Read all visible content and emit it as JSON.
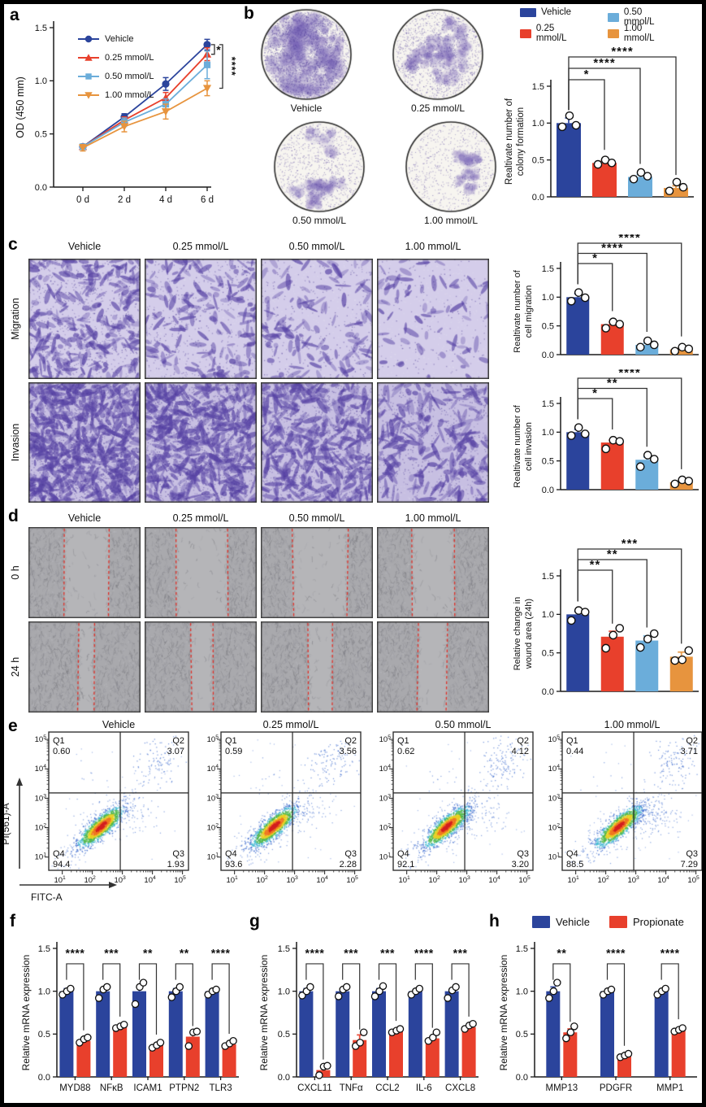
{
  "colors": {
    "vehicle_blue": "#2b449c",
    "red_025": "#e8402c",
    "lightblue_050": "#6badda",
    "orange_100": "#e7943e",
    "propionate_red": "#e8402c",
    "axis": "#1a1a1a",
    "wound_dash_red": "#e03028"
  },
  "groups": [
    {
      "label": "Vehicle",
      "color": "#2b449c"
    },
    {
      "label": "0.25 mmol/L",
      "color": "#e8402c"
    },
    {
      "label": "0.50 mmol/L",
      "color": "#6badda"
    },
    {
      "label": "1.00 mmol/L",
      "color": "#e7943e"
    }
  ],
  "panel_a": {
    "label": "a"
  },
  "panel_b": {
    "label": "b",
    "dish_labels": [
      "Vehicle",
      "0.25 mmol/L",
      "0.50 mmol/L",
      "1.00 mmol/L"
    ]
  },
  "panel_c": {
    "label": "c",
    "col_headers": [
      "Vehicle",
      "0.25 mmol/L",
      "0.50 mmol/L",
      "1.00 mmol/L"
    ],
    "row_labels": [
      "Migration",
      "Invasion"
    ]
  },
  "panel_d": {
    "label": "d",
    "col_headers": [
      "Vehicle",
      "0.25 mmol/L",
      "0.50 mmol/L",
      "1.00 mmol/L"
    ],
    "row_labels": [
      "0 h",
      "24 h"
    ]
  },
  "panel_e": {
    "label": "e"
  },
  "panel_f": {
    "label": "f"
  },
  "panel_g": {
    "label": "g"
  },
  "panel_h": {
    "label": "h"
  },
  "chart_data": [
    {
      "id": "a",
      "type": "line",
      "ylabel": "OD (450 mm)",
      "x_categories": [
        "0 d",
        "2 d",
        "4 d",
        "6 d"
      ],
      "ylim": [
        0,
        1.5
      ],
      "yticks": [
        0,
        0.5,
        1.0,
        1.5
      ],
      "series": [
        {
          "name": "Vehicle",
          "color": "#2b449c",
          "marker": "circle",
          "values": [
            0.38,
            0.66,
            0.97,
            1.34
          ],
          "errors": [
            0.02,
            0.03,
            0.06,
            0.05
          ]
        },
        {
          "name": "0.25 mmol/L",
          "color": "#e8402c",
          "marker": "triangle-up",
          "values": [
            0.38,
            0.63,
            0.84,
            1.25
          ],
          "errors": [
            0.02,
            0.03,
            0.05,
            0.06
          ]
        },
        {
          "name": "0.50 mmol/L",
          "color": "#6badda",
          "marker": "square",
          "values": [
            0.38,
            0.61,
            0.78,
            1.15
          ],
          "errors": [
            0.02,
            0.04,
            0.05,
            0.13
          ]
        },
        {
          "name": "1.00 mmol/L",
          "color": "#e7943e",
          "marker": "triangle-down",
          "values": [
            0.37,
            0.57,
            0.71,
            0.93
          ],
          "errors": [
            0.03,
            0.05,
            0.07,
            0.07
          ]
        }
      ],
      "significance": [
        {
          "stars": "*",
          "series_from": 0,
          "series_to": 1
        },
        {
          "stars": "****",
          "series_from": 0,
          "series_to": 3
        }
      ]
    },
    {
      "id": "b",
      "type": "bar",
      "ylabel": "Realtivate number of\ncolony formation",
      "categories": [
        "Vehicle",
        "0.25 mmol/L",
        "0.50 mmol/L",
        "1.00 mmol/L"
      ],
      "ylim": [
        0,
        1.5
      ],
      "yticks": [
        0,
        0.5,
        1.0,
        1.5
      ],
      "values": [
        1.0,
        0.46,
        0.27,
        0.12
      ],
      "errors": [
        0.07,
        0.03,
        0.03,
        0.03
      ],
      "points": [
        [
          0.95,
          1.1,
          0.97
        ],
        [
          0.44,
          0.5,
          0.46
        ],
        [
          0.24,
          0.33,
          0.28
        ],
        [
          0.08,
          0.2,
          0.13
        ]
      ],
      "significance": [
        {
          "stars": "*",
          "to": 1
        },
        {
          "stars": "****",
          "to": 2
        },
        {
          "stars": "****",
          "to": 3
        }
      ]
    },
    {
      "id": "c_migration",
      "type": "bar",
      "ylabel": "Realtivate number of\ncell migration",
      "categories": [
        "Vehicle",
        "0.25 mmol/L",
        "0.50 mmol/L",
        "1.00 mmol/L"
      ],
      "ylim": [
        0,
        1.5
      ],
      "yticks": [
        0,
        0.5,
        1.0,
        1.5
      ],
      "values": [
        1.0,
        0.53,
        0.17,
        0.09
      ],
      "errors": [
        0.06,
        0.04,
        0.03,
        0.02
      ],
      "points": [
        [
          0.93,
          1.08,
          0.99
        ],
        [
          0.46,
          0.57,
          0.53
        ],
        [
          0.13,
          0.24,
          0.17
        ],
        [
          0.06,
          0.13,
          0.1
        ]
      ],
      "significance": [
        {
          "stars": "*",
          "to": 1
        },
        {
          "stars": "****",
          "to": 2
        },
        {
          "stars": "****",
          "to": 3
        }
      ]
    },
    {
      "id": "c_invasion",
      "type": "bar",
      "ylabel": "Realtivate number of\ncell invasion",
      "categories": [
        "Vehicle",
        "0.25 mmol/L",
        "0.50 mmol/L",
        "1.00 mmol/L"
      ],
      "ylim": [
        0,
        1.5
      ],
      "yticks": [
        0,
        0.5,
        1.0,
        1.5
      ],
      "values": [
        1.0,
        0.82,
        0.52,
        0.13
      ],
      "errors": [
        0.05,
        0.04,
        0.05,
        0.02
      ],
      "points": [
        [
          0.94,
          1.08,
          0.97
        ],
        [
          0.71,
          0.86,
          0.84
        ],
        [
          0.4,
          0.6,
          0.53
        ],
        [
          0.1,
          0.17,
          0.15
        ]
      ],
      "significance": [
        {
          "stars": "*",
          "to": 1
        },
        {
          "stars": "**",
          "to": 2
        },
        {
          "stars": "****",
          "to": 3
        }
      ]
    },
    {
      "id": "d",
      "type": "bar",
      "ylabel": "Relative change in\nwound area (24h)",
      "categories": [
        "Vehicle",
        "0.25 mmol/L",
        "0.50 mmol/L",
        "1.00 mmol/L"
      ],
      "ylim": [
        0,
        1.5
      ],
      "yticks": [
        0,
        0.5,
        1.0,
        1.5
      ],
      "values": [
        1.0,
        0.71,
        0.66,
        0.45
      ],
      "errors": [
        0.04,
        0.07,
        0.06,
        0.06
      ],
      "points": [
        [
          0.92,
          1.05,
          1.03
        ],
        [
          0.56,
          0.73,
          0.82
        ],
        [
          0.57,
          0.68,
          0.75
        ],
        [
          0.4,
          0.41,
          0.53
        ]
      ],
      "significance": [
        {
          "stars": "**",
          "to": 1
        },
        {
          "stars": "**",
          "to": 2
        },
        {
          "stars": "***",
          "to": 3
        }
      ]
    },
    {
      "id": "f",
      "type": "grouped_bar",
      "ylabel": "Relative mRNA expression",
      "categories": [
        "MYD88",
        "NFκB",
        "ICAM1",
        "PTPN2",
        "TLR3"
      ],
      "ylim": [
        0,
        1.5
      ],
      "yticks": [
        0,
        0.5,
        1.0,
        1.5
      ],
      "series": [
        {
          "name": "Vehicle",
          "color": "#2b449c",
          "values": [
            1.0,
            1.0,
            1.0,
            1.0,
            1.0
          ],
          "errors": [
            0.03,
            0.03,
            0.05,
            0.03,
            0.02
          ],
          "points": [
            [
              0.96,
              1.0,
              1.03
            ],
            [
              0.92,
              1.02,
              1.05
            ],
            [
              0.85,
              1.05,
              1.1
            ],
            [
              0.93,
              1.0,
              1.05
            ],
            [
              0.96,
              1.0,
              1.02
            ]
          ]
        },
        {
          "name": "Propionate",
          "color": "#e8402c",
          "values": [
            0.42,
            0.58,
            0.37,
            0.47,
            0.38
          ],
          "errors": [
            0.02,
            0.01,
            0.02,
            0.04,
            0.02
          ],
          "points": [
            [
              0.4,
              0.44,
              0.46
            ],
            [
              0.57,
              0.59,
              0.61
            ],
            [
              0.34,
              0.37,
              0.4
            ],
            [
              0.36,
              0.52,
              0.53
            ],
            [
              0.36,
              0.39,
              0.42
            ]
          ]
        }
      ],
      "significance": [
        "****",
        "***",
        "**",
        "**",
        "****"
      ]
    },
    {
      "id": "g",
      "type": "grouped_bar",
      "ylabel": "Relative mRNA expression",
      "categories": [
        "CXCL11",
        "TNFα",
        "CCL2",
        "IL-6",
        "CXCL8"
      ],
      "ylim": [
        0,
        1.5
      ],
      "yticks": [
        0,
        0.5,
        1.0,
        1.5
      ],
      "series": [
        {
          "name": "Vehicle",
          "color": "#2b449c",
          "values": [
            1.0,
            1.0,
            1.0,
            1.0,
            1.0
          ],
          "errors": [
            0.03,
            0.03,
            0.03,
            0.02,
            0.03
          ],
          "points": [
            [
              0.95,
              1.0,
              1.05
            ],
            [
              0.94,
              1.02,
              1.05
            ],
            [
              0.94,
              1.0,
              1.06
            ],
            [
              0.96,
              1.0,
              1.03
            ],
            [
              0.92,
              1.01,
              1.05
            ]
          ]
        },
        {
          "name": "Propionate",
          "color": "#e8402c",
          "values": [
            0.08,
            0.43,
            0.53,
            0.45,
            0.58
          ],
          "errors": [
            0.03,
            0.06,
            0.01,
            0.02,
            0.02
          ],
          "points": [
            [
              0.02,
              0.12,
              0.13
            ],
            [
              0.36,
              0.4,
              0.52
            ],
            [
              0.52,
              0.54,
              0.56
            ],
            [
              0.42,
              0.46,
              0.52
            ],
            [
              0.56,
              0.6,
              0.62
            ]
          ]
        }
      ],
      "significance": [
        "****",
        "***",
        "***",
        "****",
        "***"
      ]
    },
    {
      "id": "h",
      "type": "grouped_bar",
      "ylabel": "Relative mRNA expression",
      "categories": [
        "MMP13",
        "PDGFR",
        "MMP1"
      ],
      "ylim": [
        0,
        1.5
      ],
      "yticks": [
        0,
        0.5,
        1.0,
        1.5
      ],
      "series": [
        {
          "name": "Vehicle",
          "color": "#2b449c",
          "values": [
            1.0,
            1.0,
            1.0
          ],
          "errors": [
            0.05,
            0.02,
            0.02
          ],
          "points": [
            [
              0.92,
              1.0,
              1.1
            ],
            [
              0.96,
              1.0,
              1.02
            ],
            [
              0.96,
              1.0,
              1.03
            ]
          ]
        },
        {
          "name": "Propionate",
          "color": "#e8402c",
          "values": [
            0.52,
            0.24,
            0.55
          ],
          "errors": [
            0.04,
            0.01,
            0.01
          ],
          "points": [
            [
              0.45,
              0.52,
              0.59
            ],
            [
              0.23,
              0.25,
              0.27
            ],
            [
              0.53,
              0.55,
              0.57
            ]
          ]
        }
      ],
      "significance": [
        "**",
        "****",
        "****"
      ]
    },
    {
      "id": "flow_vehicle",
      "type": "flow",
      "title": "Vehicle",
      "xlabel": "FITC-A",
      "ylabel": "PI(561)-A",
      "axis_exponents": [
        1,
        2,
        3,
        4,
        5
      ],
      "quadrants": {
        "Q1": "0.60",
        "Q2": "3.07",
        "Q3": "1.93",
        "Q4": "94.4"
      }
    },
    {
      "id": "flow_025",
      "type": "flow",
      "title": "0.25 mmol/L",
      "axis_exponents": [
        1,
        2,
        3,
        4,
        5
      ],
      "quadrants": {
        "Q1": "0.59",
        "Q2": "3.56",
        "Q3": "2.28",
        "Q4": "93.6"
      }
    },
    {
      "id": "flow_050",
      "type": "flow",
      "title": "0.50 mmol/L",
      "axis_exponents": [
        1,
        2,
        3,
        4,
        5
      ],
      "quadrants": {
        "Q1": "0.62",
        "Q2": "4.12",
        "Q3": "3.20",
        "Q4": "92.1"
      }
    },
    {
      "id": "flow_100",
      "type": "flow",
      "title": "1.00 mmol/L",
      "axis_exponents": [
        1,
        2,
        3,
        4,
        5
      ],
      "quadrants": {
        "Q1": "0.44",
        "Q2": "3.71",
        "Q3": "7.29",
        "Q4": "88.5"
      }
    }
  ]
}
